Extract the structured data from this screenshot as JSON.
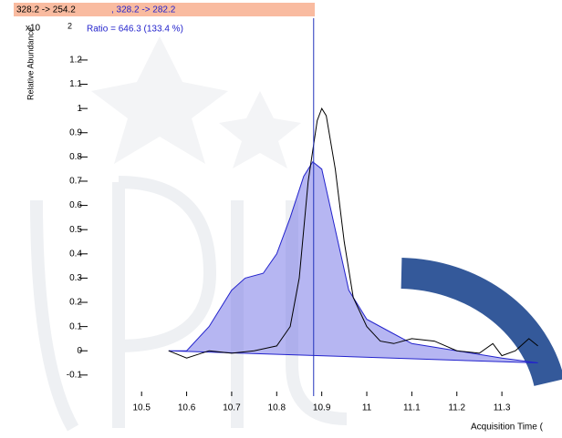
{
  "chart_data": {
    "type": "line",
    "header": {
      "quantifier": "328.2 -> 254.2",
      "qualifier": ", 328.2 -> 282.2",
      "color": "#f9bba0"
    },
    "exponent_base": "x10",
    "exponent": "2",
    "annotation": "Ratio = 646.3 (133.4 %)",
    "y_label": "Relative Abundance",
    "x_label": "Acquisition Time (",
    "xlim": [
      10.374,
      11.397
    ],
    "ylim": [
      -0.187,
      1.335
    ],
    "xticks": [
      10.5,
      10.6,
      10.7,
      10.8,
      10.9,
      11,
      11.1,
      11.2,
      11.3
    ],
    "yticks": [
      -0.1,
      0,
      0.1,
      0.2,
      0.3,
      0.4,
      0.5,
      0.6,
      0.7,
      0.8,
      0.9,
      1,
      1.1,
      1.2
    ],
    "reference_line": {
      "x": 10.882,
      "color": "#2233bb"
    },
    "series": [
      {
        "name": "328.2 -> 282.2",
        "color": "#2222cc",
        "fill": "rgba(110,110,230,0.5)",
        "x": [
          10.56,
          10.6,
          10.65,
          10.7,
          10.73,
          10.77,
          10.8,
          10.83,
          10.86,
          10.88,
          10.9,
          10.93,
          10.96,
          11.0,
          11.05,
          11.1,
          11.2,
          11.3,
          11.38
        ],
        "values": [
          0,
          0.0,
          0.1,
          0.25,
          0.3,
          0.32,
          0.4,
          0.55,
          0.72,
          0.78,
          0.75,
          0.5,
          0.25,
          0.13,
          0.08,
          0.03,
          0.0,
          -0.03,
          -0.05
        ]
      },
      {
        "name": "328.2 -> 254.2",
        "color": "#000000",
        "x": [
          10.56,
          10.6,
          10.65,
          10.7,
          10.75,
          10.8,
          10.83,
          10.85,
          10.87,
          10.89,
          10.9,
          10.91,
          10.93,
          10.95,
          10.97,
          11.0,
          11.03,
          11.06,
          11.1,
          11.15,
          11.2,
          11.25,
          11.28,
          11.3,
          11.33,
          11.36,
          11.38
        ],
        "values": [
          0,
          -0.03,
          0.0,
          -0.01,
          0.0,
          0.02,
          0.1,
          0.3,
          0.7,
          0.95,
          1.0,
          0.97,
          0.75,
          0.45,
          0.22,
          0.1,
          0.04,
          0.03,
          0.05,
          0.04,
          0.0,
          -0.01,
          0.03,
          -0.02,
          0.0,
          0.05,
          0.02
        ]
      }
    ]
  }
}
